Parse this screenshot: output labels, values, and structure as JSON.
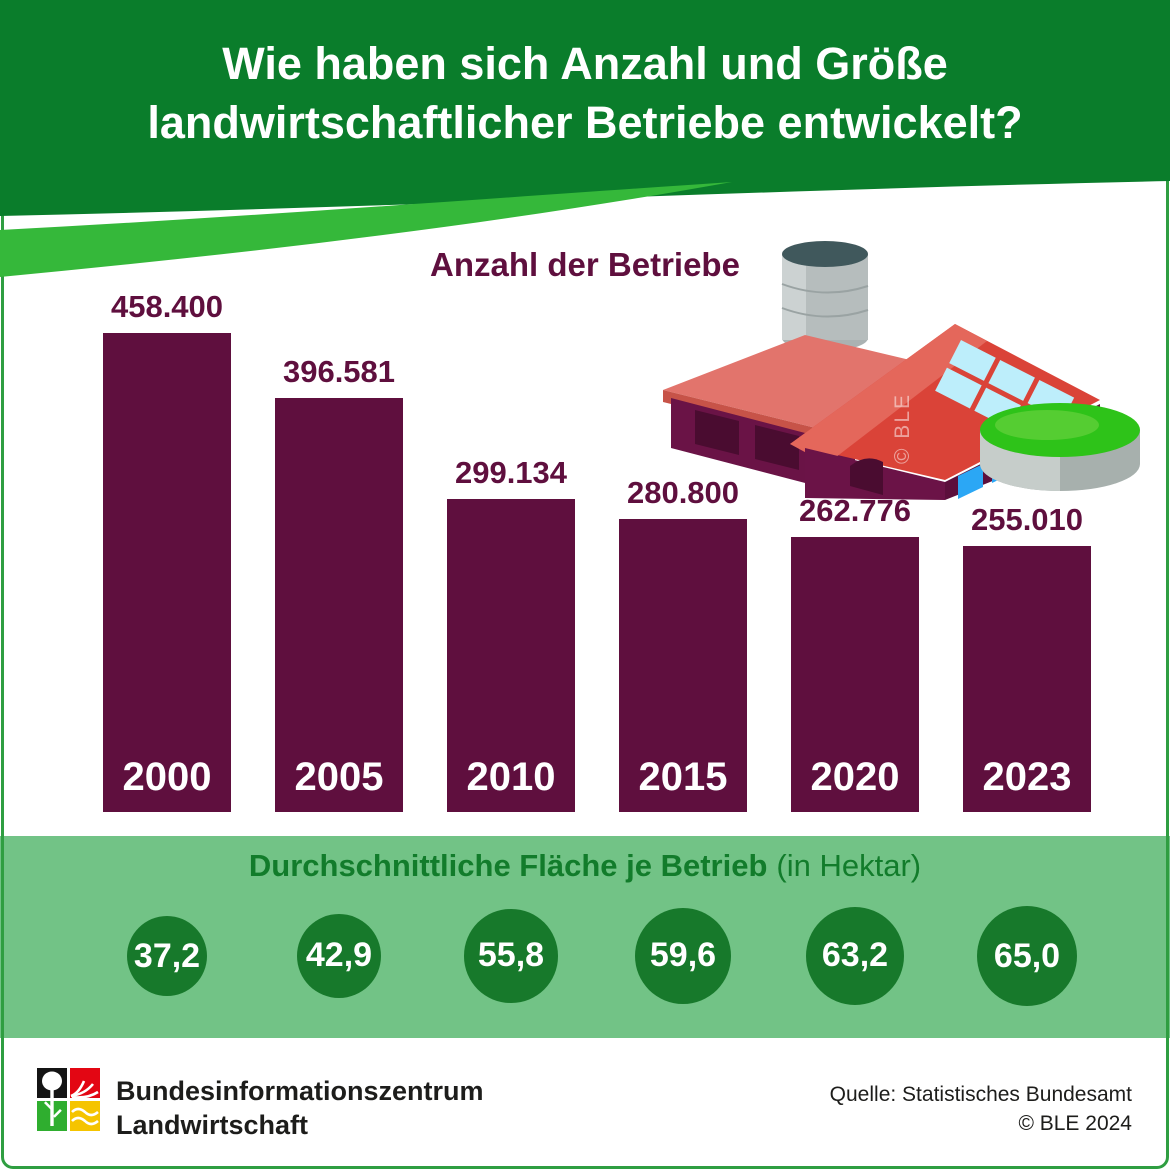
{
  "header": {
    "title_line1": "Wie haben sich Anzahl und Größe",
    "title_line2": "landwirtschaftlicher Betriebe entwickelt?"
  },
  "chart_data": {
    "type": "bar",
    "title": "Anzahl der Betriebe",
    "categories": [
      "2000",
      "2005",
      "2010",
      "2015",
      "2020",
      "2023"
    ],
    "values": [
      458400,
      396581,
      299134,
      280800,
      262776,
      255010
    ],
    "value_labels": [
      "458.400",
      "396.581",
      "299.134",
      "280.800",
      "262.776",
      "255.010"
    ],
    "ylim": [
      0,
      480000
    ],
    "grid": false,
    "legend": "none",
    "secondary": {
      "type": "proportional-circles",
      "title_bold": "Durchschnittliche Fläche je Betrieb",
      "title_unit": "(in Hektar)",
      "categories": [
        "2000",
        "2005",
        "2010",
        "2015",
        "2020",
        "2023"
      ],
      "values": [
        37.2,
        42.9,
        55.8,
        59.6,
        63.2,
        65.0
      ],
      "value_labels": [
        "37,2",
        "42,9",
        "55,8",
        "59,6",
        "63,2",
        "65,0"
      ]
    }
  },
  "illustration": {
    "name": "farm-building-with-silo-solar-panels-and-green-field-disc",
    "watermark": "© BLE"
  },
  "footer": {
    "org_line1": "Bundesinformationszentrum",
    "org_line2": "Landwirtschaft",
    "source_line1": "Quelle: Statistisches Bundesamt",
    "source_line2": "© BLE 2024"
  },
  "colors": {
    "bar": "#5f0f3e",
    "header_green": "#0a7d2b",
    "swoosh_green": "#35b83a",
    "band_bg": "#72c386",
    "circle_green": "#17792b",
    "title_green": "#127c2b",
    "frame_border": "#2f9e41",
    "footer_text": "#1d1d1b"
  }
}
